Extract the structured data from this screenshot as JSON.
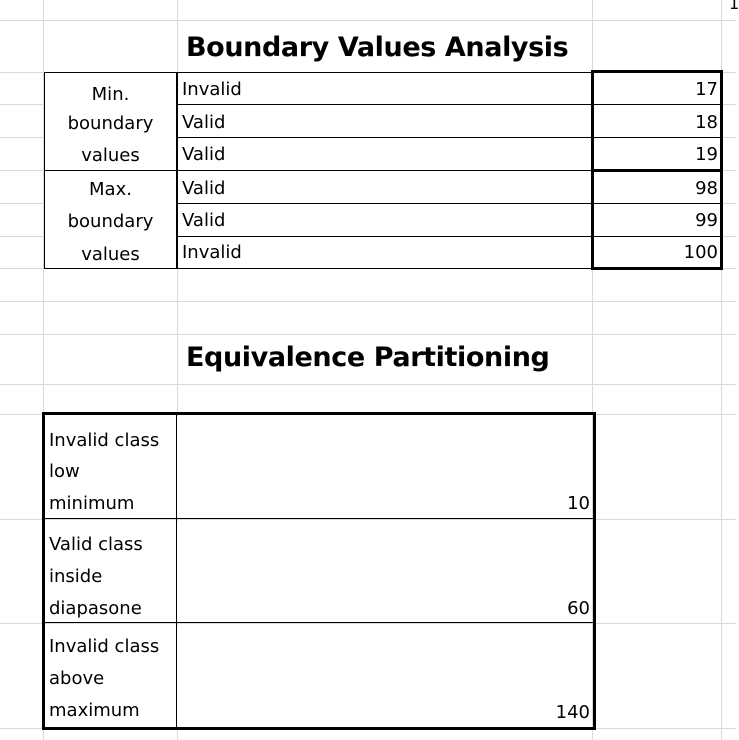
{
  "corner_label": "1",
  "bva": {
    "title": "Boundary Values Analysis",
    "groups": [
      {
        "label_lines": [
          "Min.",
          "boundary",
          "values"
        ]
      },
      {
        "label_lines": [
          "Max.",
          "boundary",
          "values"
        ]
      }
    ],
    "rows": [
      {
        "status": "Invalid",
        "value": "17"
      },
      {
        "status": "Valid",
        "value": "18"
      },
      {
        "status": "Valid",
        "value": "19"
      },
      {
        "status": "Valid",
        "value": "98"
      },
      {
        "status": "Valid",
        "value": "99"
      },
      {
        "status": "Invalid",
        "value": "100"
      }
    ]
  },
  "ep": {
    "title": "Equivalence Partitioning",
    "rows": [
      {
        "label_lines": [
          "Invalid class",
          "low",
          "minimum"
        ],
        "value": "10"
      },
      {
        "label_lines": [
          "Valid class",
          "inside",
          "diapasone"
        ],
        "value": "60"
      },
      {
        "label_lines": [
          "Invalid class",
          "above",
          "maximum"
        ],
        "value": "140"
      }
    ]
  }
}
